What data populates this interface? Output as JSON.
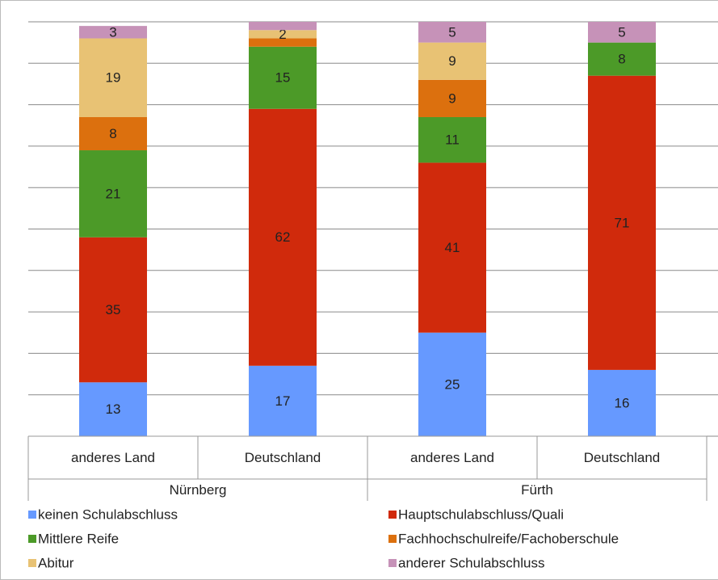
{
  "chart_data": {
    "type": "stacked_bar",
    "categories": [
      "anderes Land",
      "Deutschland",
      "anderes Land",
      "Deutschland"
    ],
    "groups": [
      "Nürnberg",
      "Fürth"
    ],
    "series": [
      {
        "name": "keinen Schulabschluss",
        "color": "#6699ff",
        "values": [
          13,
          17,
          25,
          16
        ],
        "value_labels": [
          "13",
          "17",
          "25",
          "16"
        ]
      },
      {
        "name": "Hauptschulabschluss/Quali",
        "color": "#d02a0c",
        "values": [
          35,
          62,
          41,
          71
        ],
        "value_labels": [
          "35",
          "62",
          "41",
          "71"
        ]
      },
      {
        "name": "Mittlere Reife",
        "color": "#4c9a28",
        "values": [
          21,
          15,
          11,
          8
        ],
        "value_labels": [
          "21",
          "15",
          "11",
          "8"
        ]
      },
      {
        "name": "Fachhochschulreife/Fachoberschule",
        "color": "#dc700e",
        "values": [
          8,
          2,
          9,
          0
        ],
        "value_labels": [
          "8",
          null,
          "9",
          null
        ]
      },
      {
        "name": "Abitur",
        "color": "#e8c274",
        "values": [
          19,
          2,
          9,
          0
        ],
        "value_labels": [
          "19",
          "2",
          "9",
          null
        ]
      },
      {
        "name": "anderer Schulabschluss",
        "color": "#c692b8",
        "values": [
          3,
          2,
          5,
          5
        ],
        "value_labels": [
          "3",
          null,
          "5",
          "5"
        ]
      }
    ],
    "ylim": [
      0,
      100
    ],
    "yticks": [
      0,
      10,
      20,
      30,
      40,
      50,
      60,
      70,
      80,
      90,
      100
    ],
    "grid": true
  }
}
